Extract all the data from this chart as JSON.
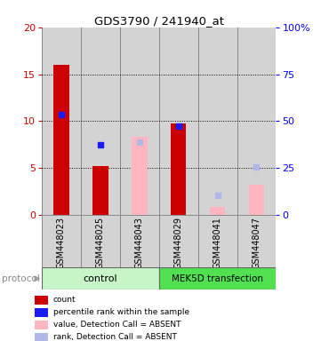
{
  "title": "GDS3790 / 241940_at",
  "samples": [
    "GSM448023",
    "GSM448025",
    "GSM448043",
    "GSM448029",
    "GSM448041",
    "GSM448047"
  ],
  "red_bars": [
    16.0,
    5.2,
    null,
    9.7,
    null,
    null
  ],
  "blue_squares": [
    10.7,
    7.5,
    null,
    9.5,
    null,
    null
  ],
  "pink_bars": [
    null,
    null,
    8.3,
    null,
    0.8,
    3.2
  ],
  "lightblue_squares": [
    null,
    null,
    7.8,
    null,
    2.1,
    5.1
  ],
  "ylim_left": [
    0,
    20
  ],
  "ylim_right": [
    0,
    100
  ],
  "yticks_left": [
    0,
    5,
    10,
    15,
    20
  ],
  "yticks_right": [
    0,
    25,
    50,
    75,
    100
  ],
  "yticklabels_right": [
    "0",
    "25",
    "50",
    "75",
    "100%"
  ],
  "hlines": [
    5,
    10,
    15
  ],
  "control_indices": [
    0,
    1,
    2
  ],
  "mek_indices": [
    3,
    4,
    5
  ],
  "ctrl_color": "#c8f5c8",
  "mek_color": "#50e050",
  "red_color": "#cc0000",
  "blue_color": "#1a1aff",
  "pink_color": "#ffb6c1",
  "lightblue_color": "#b0b8e8",
  "sample_bg_color": "#d3d3d3",
  "sample_border_color": "#888888",
  "bar_width": 0.4,
  "legend_labels": [
    "count",
    "percentile rank within the sample",
    "value, Detection Call = ABSENT",
    "rank, Detection Call = ABSENT"
  ]
}
